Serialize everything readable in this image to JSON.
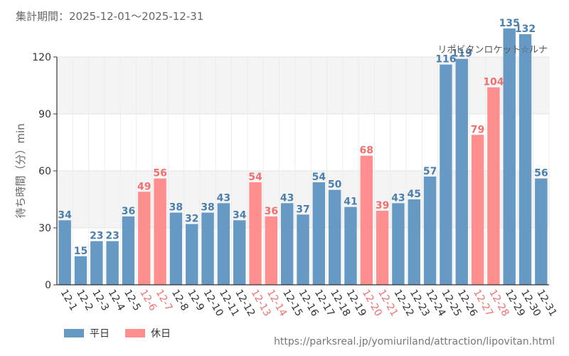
{
  "header": {
    "period": "集計期間：2025-12-01〜2025-12-31"
  },
  "chart_data": {
    "type": "bar",
    "title": "リポビタンロケット☆ルナ",
    "xlabel": "",
    "ylabel": "待ち時間（分）min",
    "ylim": [
      0,
      120
    ],
    "yticks": [
      "0",
      "30",
      "60",
      "90",
      "120"
    ],
    "categories": [
      "12-1",
      "12-2",
      "12-3",
      "12-4",
      "12-5",
      "12-6",
      "12-7",
      "12-8",
      "12-9",
      "12-10",
      "12-11",
      "12-12",
      "12-13",
      "12-14",
      "12-15",
      "12-16",
      "12-17",
      "12-18",
      "12-19",
      "12-20",
      "12-21",
      "12-22",
      "12-23",
      "12-24",
      "12-25",
      "12-26",
      "12-27",
      "12-28",
      "12-29",
      "12-30",
      "12-31"
    ],
    "values": [
      34,
      15,
      23,
      23,
      36,
      49,
      56,
      38,
      32,
      38,
      43,
      34,
      54,
      36,
      43,
      37,
      54,
      50,
      41,
      68,
      39,
      43,
      45,
      57,
      116,
      119,
      79,
      104,
      135,
      132,
      56
    ],
    "day_type": [
      "weekday",
      "weekday",
      "weekday",
      "weekday",
      "weekday",
      "holiday",
      "holiday",
      "weekday",
      "weekday",
      "weekday",
      "weekday",
      "weekday",
      "holiday",
      "holiday",
      "weekday",
      "weekday",
      "weekday",
      "weekday",
      "weekday",
      "holiday",
      "holiday",
      "weekday",
      "weekday",
      "weekday",
      "weekday",
      "weekday",
      "holiday",
      "holiday",
      "weekday",
      "weekday",
      "weekday"
    ],
    "series": [
      {
        "name": "平日",
        "key": "weekday",
        "color": "#6699c4"
      },
      {
        "name": "休日",
        "key": "holiday",
        "color": "#ff8f8f"
      }
    ],
    "label_colors": {
      "weekday": "#4a7fae",
      "holiday": "#f07070"
    },
    "band_color": "#f4f4f4",
    "legend_position": "bottom-left"
  },
  "source": {
    "url": "https://parksreal.jp/yomiuriland/attraction/lipovitan.html"
  }
}
